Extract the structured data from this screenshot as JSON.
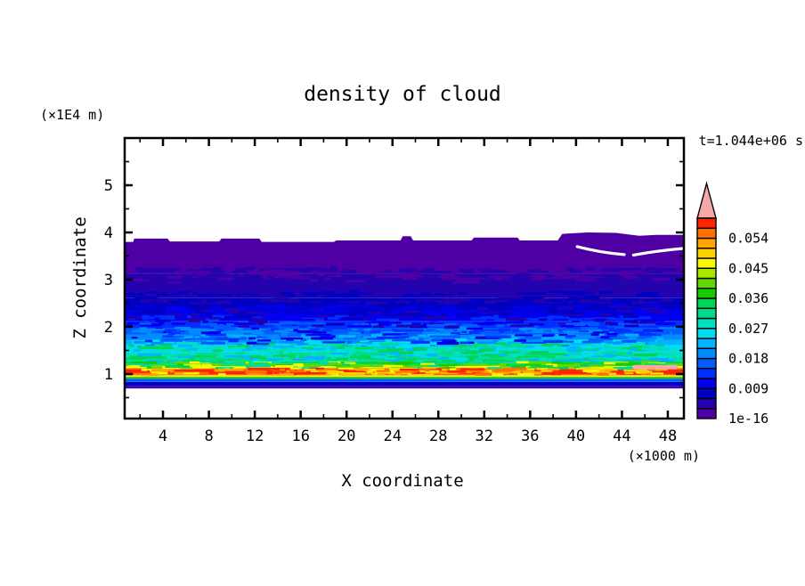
{
  "title": "density of cloud",
  "time_label": "t=1.044e+06 s",
  "x_axis": {
    "label": "X coordinate",
    "unit_label": "(×1000 m)",
    "tick_labels": [
      4,
      8,
      12,
      16,
      20,
      24,
      28,
      32,
      36,
      40,
      44,
      48
    ],
    "minor_tick_step": 2,
    "range": [
      0.66,
      49.4
    ]
  },
  "z_axis": {
    "label": "Z coordinate",
    "unit_label": "(×1E4 m)",
    "tick_labels": [
      1,
      2,
      3,
      4,
      5
    ],
    "minor_tick_step": 0.5,
    "range": [
      0.057,
      6.0
    ]
  },
  "colorbar": {
    "n_segments": 20,
    "value_step": 0.003,
    "overflow_color": "#F6A7A7",
    "palette": [
      "#4E00A5",
      "#2403AE",
      "#0000C3",
      "#0000EE",
      "#0030FF",
      "#005CFF",
      "#008CFF",
      "#00B4FF",
      "#00DCF0",
      "#00E0C0",
      "#00DC8C",
      "#00D455",
      "#16CB00",
      "#5FD900",
      "#A8E800",
      "#F8F800",
      "#FFD000",
      "#FFA400",
      "#FF7000",
      "#FF2400"
    ],
    "labels": [
      {
        "segment": 0,
        "text": "1e-16"
      },
      {
        "segment": 3,
        "text": "0.009"
      },
      {
        "segment": 6,
        "text": "0.018"
      },
      {
        "segment": 9,
        "text": "0.027"
      },
      {
        "segment": 12,
        "text": "0.036"
      },
      {
        "segment": 15,
        "text": "0.045"
      },
      {
        "segment": 18,
        "text": "0.054"
      }
    ]
  },
  "chart_data": {
    "type": "heatmap",
    "subtype": "filled_contour",
    "title": "density of cloud",
    "xlabel": "X coordinate (×1000 m)",
    "ylabel": "Z coordinate (×1E4 m)",
    "time": "t=1.044e+06 s",
    "x_range": [
      0.66,
      49.4
    ],
    "z_range": [
      0.057,
      6.0
    ],
    "contour_interval": 0.003,
    "contour_min_label": "1e-16",
    "contour_max": 0.06,
    "legend_position": "right",
    "description": "Horizontally stratified cloud-density field: value near 0 above z=3.88, increasing downward to a red maximum band (~0.057-0.06) near z=1.05, then dropping sharply to 0 below z=0.70.",
    "cloud_top_edge": [
      [
        0.66,
        3.8
      ],
      [
        1.4,
        3.8
      ],
      [
        1.5,
        3.87
      ],
      [
        4.4,
        3.87
      ],
      [
        4.6,
        3.81
      ],
      [
        8.9,
        3.81
      ],
      [
        9.1,
        3.87
      ],
      [
        12.4,
        3.87
      ],
      [
        12.6,
        3.8
      ],
      [
        18.9,
        3.8
      ],
      [
        19.1,
        3.83
      ],
      [
        24.7,
        3.83
      ],
      [
        24.9,
        3.92
      ],
      [
        25.6,
        3.92
      ],
      [
        25.8,
        3.83
      ],
      [
        30.9,
        3.83
      ],
      [
        31.1,
        3.89
      ],
      [
        34.9,
        3.89
      ],
      [
        35.1,
        3.83
      ],
      [
        38.4,
        3.83
      ],
      [
        38.8,
        3.97
      ],
      [
        41.0,
        4.0
      ],
      [
        43.5,
        3.99
      ],
      [
        45.5,
        3.93
      ],
      [
        47.0,
        3.95
      ],
      [
        49.4,
        3.95
      ]
    ],
    "bands": [
      {
        "palette_index": 0,
        "z_top": 3.88,
        "z_bottom": 3.13
      },
      {
        "palette_index": 1,
        "z_top": 3.13,
        "z_bottom": 2.62
      },
      {
        "palette_index": 2,
        "z_top": 2.62,
        "z_bottom": 2.35
      },
      {
        "palette_index": 3,
        "z_top": 2.35,
        "z_bottom": 2.12
      },
      {
        "palette_index": 4,
        "z_top": 2.12,
        "z_bottom": 1.97
      },
      {
        "palette_index": 5,
        "z_top": 1.97,
        "z_bottom": 1.84
      },
      {
        "palette_index": 6,
        "z_top": 1.84,
        "z_bottom": 1.72
      },
      {
        "palette_index": 7,
        "z_top": 1.72,
        "z_bottom": 1.61
      },
      {
        "palette_index": 8,
        "z_top": 1.61,
        "z_bottom": 1.46
      },
      {
        "palette_index": 9,
        "z_top": 1.46,
        "z_bottom": 1.34
      },
      {
        "palette_index": 10,
        "z_top": 1.34,
        "z_bottom": 1.27
      },
      {
        "palette_index": 11,
        "z_top": 1.27,
        "z_bottom": 1.22
      },
      {
        "palette_index": 13,
        "z_top": 1.22,
        "z_bottom": 1.17
      },
      {
        "palette_index": 15,
        "z_top": 1.17,
        "z_bottom": 1.135
      },
      {
        "palette_index": 17,
        "z_top": 1.135,
        "z_bottom": 1.105
      },
      {
        "palette_index": 19,
        "z_top": 1.105,
        "z_bottom": 0.99
      },
      {
        "palette_index": 17,
        "z_top": 0.99,
        "z_bottom": 0.965
      },
      {
        "palette_index": 15,
        "z_top": 0.965,
        "z_bottom": 0.94
      },
      {
        "palette_index": 12,
        "z_top": 0.94,
        "z_bottom": 0.9
      },
      {
        "palette_index": 5,
        "z_top": 0.9,
        "z_bottom": 0.835
      },
      {
        "palette_index": 2,
        "z_top": 0.835,
        "z_bottom": 0.74
      },
      {
        "palette_index": 0,
        "z_top": 0.74,
        "z_bottom": 0.695
      }
    ],
    "features": {
      "white_gaps_near_cloud_top": [
        [
          [
            40.1,
            3.7
          ],
          [
            42.2,
            3.57
          ],
          [
            44.2,
            3.53
          ]
        ],
        [
          [
            45.0,
            3.52
          ],
          [
            47.3,
            3.62
          ],
          [
            49.35,
            3.66
          ]
        ]
      ],
      "overflow_patch": {
        "x_range": [
          44.9,
          48.9
        ],
        "z_range": [
          1.1,
          1.19
        ]
      }
    }
  }
}
